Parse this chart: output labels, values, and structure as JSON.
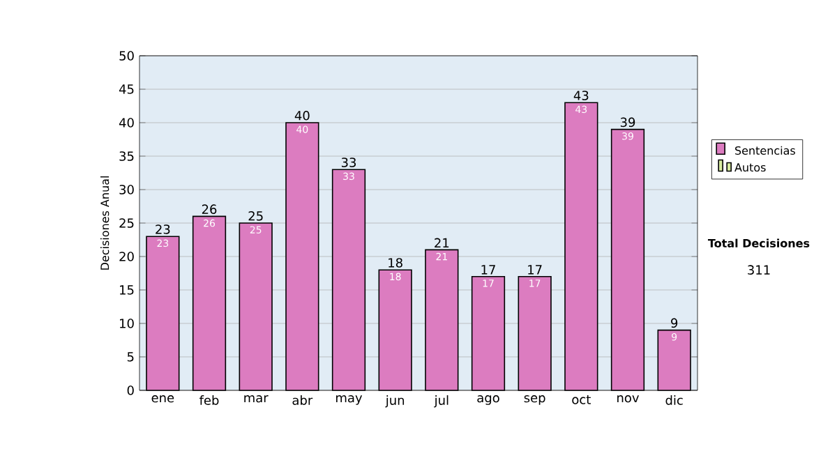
{
  "chart_data": {
    "type": "bar",
    "stacked": true,
    "ylabel": "Decisiones Anual",
    "categories": [
      "ene",
      "feb",
      "mar",
      "abr",
      "may",
      "jun",
      "jul",
      "ago",
      "sep",
      "oct",
      "nov",
      "dic"
    ],
    "series": [
      {
        "name": "Sentencias",
        "color": "#dc7cc0",
        "values": [
          23,
          26,
          25,
          40,
          33,
          18,
          21,
          17,
          17,
          43,
          39,
          9
        ]
      },
      {
        "name": "Autos",
        "color": "#d8eca0",
        "values": [
          null,
          null,
          null,
          null,
          null,
          null,
          null,
          null,
          null,
          null,
          null,
          null
        ]
      }
    ],
    "data_labels": true,
    "totals": [
      "23",
      "26",
      "25",
      "40",
      "33",
      "18",
      "21",
      "17",
      "17",
      "43",
      "39",
      "9"
    ],
    "ylim": [
      0,
      50
    ],
    "yticks": [
      0,
      5,
      10,
      15,
      20,
      25,
      30,
      35,
      40,
      45,
      50
    ],
    "grid": "y",
    "legend": "right",
    "annotations": [
      "Total Decisiones",
      "311"
    ]
  }
}
